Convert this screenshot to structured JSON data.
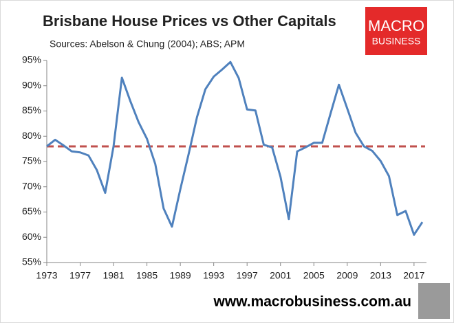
{
  "chart_data": {
    "type": "line",
    "title": "Brisbane House Prices vs Other Capitals",
    "subtitle": "Sources: Abelson & Chung (2004); ABS; APM",
    "logo": {
      "line1": "MACRO",
      "line2": "BUSINESS",
      "color": "#e42a2a"
    },
    "footer": "www.macrobusiness.com.au",
    "x": [
      1973,
      1974,
      1975,
      1976,
      1977,
      1978,
      1979,
      1980,
      1981,
      1982,
      1983,
      1984,
      1985,
      1986,
      1987,
      1988,
      1989,
      1990,
      1991,
      1992,
      1993,
      1994,
      1995,
      1996,
      1997,
      1998,
      1999,
      2000,
      2001,
      2002,
      2003,
      2004,
      2005,
      2006,
      2007,
      2008,
      2009,
      2010,
      2011,
      2012,
      2013,
      2014,
      2015,
      2016,
      2017,
      2018
    ],
    "values": [
      78,
      79.3,
      78.2,
      77,
      76.8,
      76.2,
      73.3,
      68.8,
      78,
      91.6,
      87,
      82.8,
      79.5,
      74.5,
      65.7,
      62.1,
      69.5,
      76.5,
      83.8,
      89.3,
      91.8,
      93.2,
      94.7,
      91.5,
      85.3,
      85.1,
      78.3,
      77.8,
      72,
      63.6,
      77,
      77.8,
      78.7,
      78.7,
      84.5,
      90.2,
      85.5,
      80.7,
      78,
      77.1,
      75.1,
      72.1,
      64.4,
      65.2,
      60.5,
      63
    ],
    "color": "#4f81bd",
    "reference_line": {
      "value": 78,
      "color": "#c0504d",
      "dashed": true
    },
    "xlim": [
      1973,
      2018
    ],
    "xticks": [
      1973,
      1977,
      1981,
      1985,
      1989,
      1993,
      1997,
      2001,
      2005,
      2009,
      2013,
      2017
    ],
    "ylim": [
      55,
      95
    ],
    "yticks": [
      {
        "value": 55,
        "label": "55%"
      },
      {
        "value": 60,
        "label": "60%"
      },
      {
        "value": 65,
        "label": "65%"
      },
      {
        "value": 70,
        "label": "70%"
      },
      {
        "value": 75,
        "label": "75%"
      },
      {
        "value": 80,
        "label": "80%"
      },
      {
        "value": 85,
        "label": "85%"
      },
      {
        "value": 90,
        "label": "90%"
      },
      {
        "value": 95,
        "label": "95%"
      }
    ],
    "grid": false
  }
}
